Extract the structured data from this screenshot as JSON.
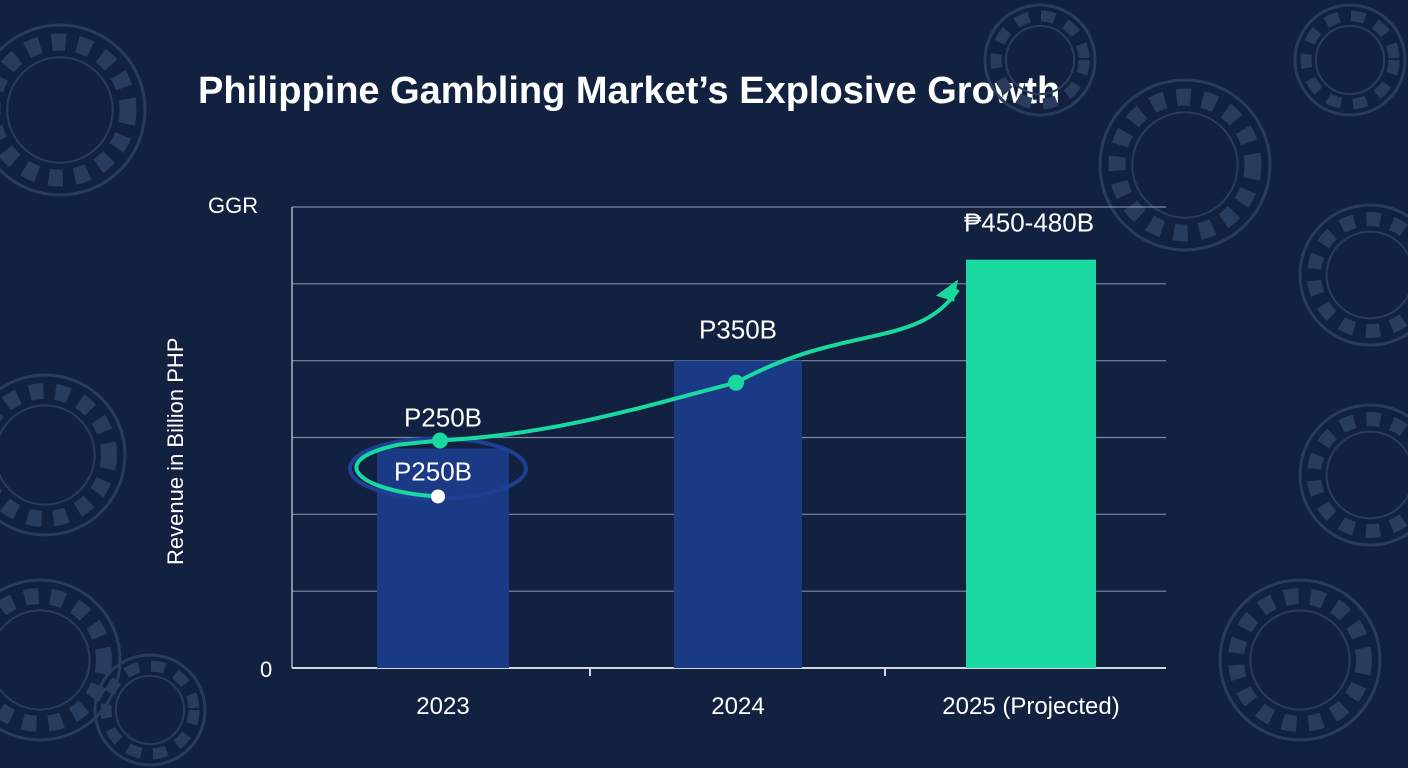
{
  "chart_data": {
    "type": "bar",
    "title": "Philippine Gambling Market’s Explosive Growth",
    "ylabel": "Revenue in Billion PHP",
    "y_top_label": "GGR",
    "y_tick_labels": [
      "0"
    ],
    "ylim": [
      0,
      525
    ],
    "grid": true,
    "categories": [
      "2023",
      "2024",
      "2025 (Projected)"
    ],
    "values": [
      250,
      350,
      465
    ],
    "value_ranges": [
      null,
      null,
      [
        450,
        480
      ]
    ],
    "data_labels": [
      "P250B",
      "P350B",
      "₱450-480B"
    ],
    "extra_label_2023": "P250B",
    "bar_colors": [
      "#1a3a85",
      "#1a3a85",
      "#19d9a0"
    ],
    "trend_color": "#19d9a0",
    "background_color": "#12213f"
  }
}
